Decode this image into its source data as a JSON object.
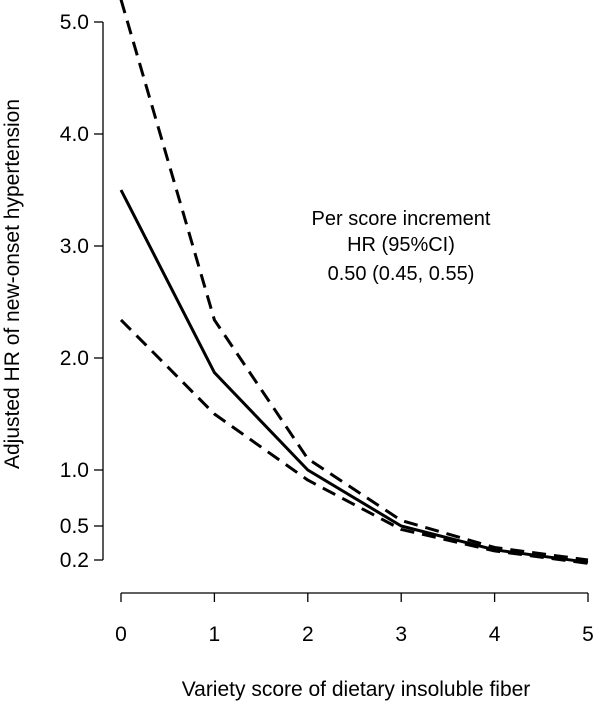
{
  "chart_data": {
    "type": "line",
    "title": "",
    "xlabel": "Variety score of dietary insoluble fiber",
    "ylabel": "Adjusted HR of new-onset hypertension",
    "x": [
      0,
      1,
      2,
      3,
      4,
      5
    ],
    "x_ticks": [
      "0",
      "1",
      "2",
      "3",
      "4",
      "5"
    ],
    "y_ticks": [
      {
        "value": 0.2,
        "label": "0.2"
      },
      {
        "value": 0.5,
        "label": "0.5"
      },
      {
        "value": 1.0,
        "label": "1.0"
      },
      {
        "value": 2.0,
        "label": "2.0"
      },
      {
        "value": 3.0,
        "label": "3.0"
      },
      {
        "value": 4.0,
        "label": "4.0"
      },
      {
        "value": 5.0,
        "label": "5.0"
      }
    ],
    "xlim": [
      0,
      5
    ],
    "ylim": [
      0.2,
      5.0
    ],
    "grid": false,
    "series": [
      {
        "style": "solid",
        "values": [
          3.5,
          1.87,
          1.0,
          0.5,
          0.29,
          0.18
        ]
      },
      {
        "style": "dashed",
        "values": [
          5.2,
          2.34,
          1.1,
          0.55,
          0.31,
          0.2
        ]
      },
      {
        "style": "dashed",
        "values": [
          2.34,
          1.5,
          0.91,
          0.47,
          0.28,
          0.17
        ]
      }
    ],
    "annotation": [
      "Per score increment",
      "HR (95%CI)",
      "0.50 (0.45, 0.55)"
    ]
  }
}
